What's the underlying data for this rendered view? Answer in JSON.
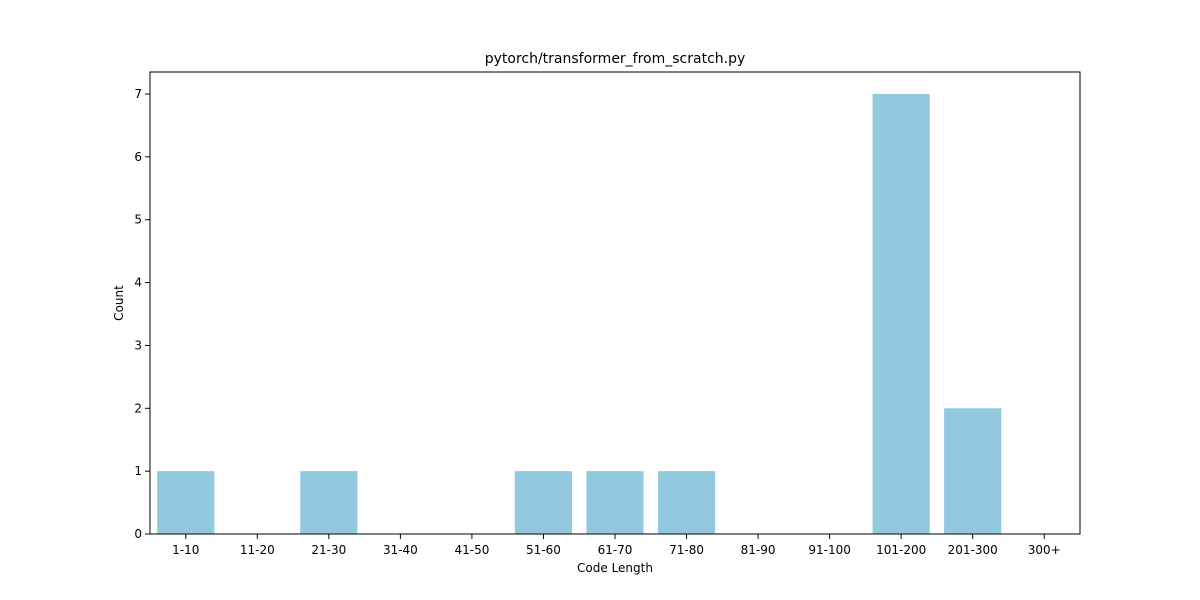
{
  "chart_data": {
    "type": "bar",
    "title": "pytorch/transformer_from_scratch.py",
    "xlabel": "Code Length",
    "ylabel": "Count",
    "categories": [
      "1-10",
      "11-20",
      "21-30",
      "31-40",
      "41-50",
      "51-60",
      "61-70",
      "71-80",
      "81-90",
      "91-100",
      "101-200",
      "201-300",
      "300+"
    ],
    "values": [
      1,
      0,
      1,
      0,
      0,
      1,
      1,
      1,
      0,
      0,
      7,
      2,
      0
    ],
    "ylim": [
      0,
      7.35
    ],
    "yticks": [
      0,
      1,
      2,
      3,
      4,
      5,
      6,
      7
    ],
    "bar_color": "#92c9df",
    "grid": false,
    "legend": "none"
  }
}
